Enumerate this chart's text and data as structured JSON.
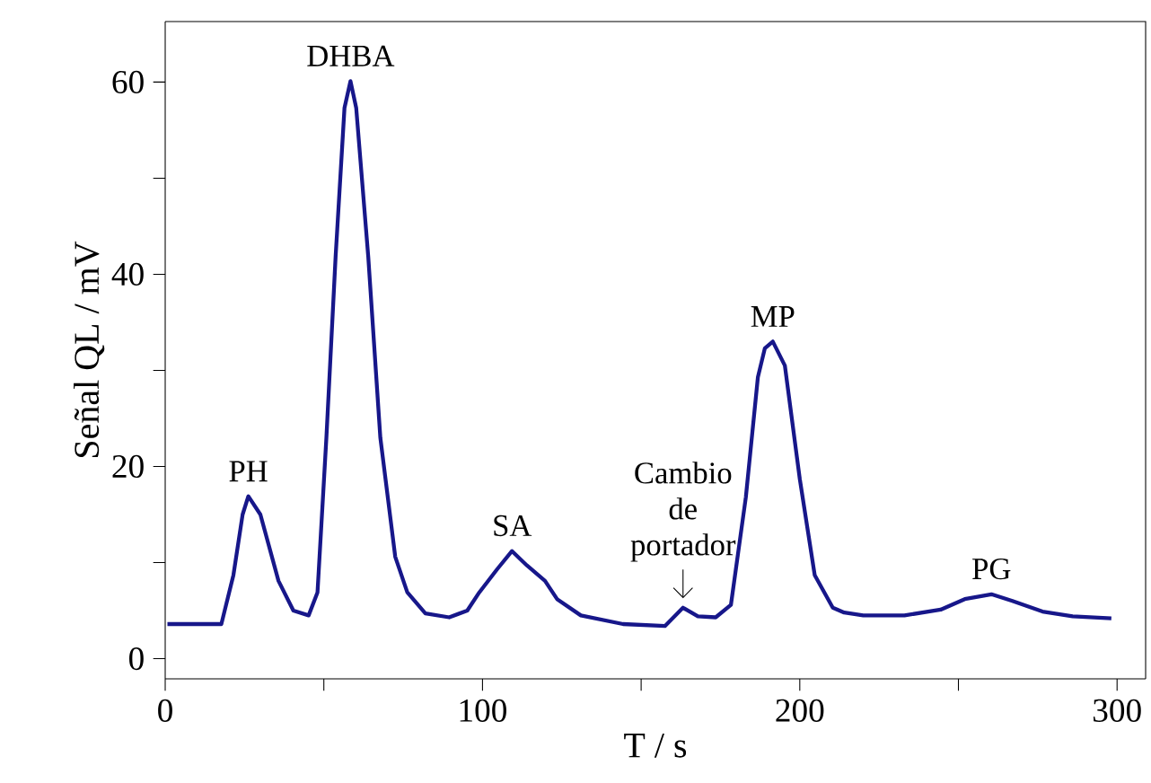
{
  "chart_data": {
    "type": "line",
    "xlabel": "T / s",
    "ylabel": "Señal QL / mV",
    "color": "#17178a",
    "x": [
      0.7,
      17.7,
      21.5,
      24.4,
      26.2,
      30,
      35.7,
      40.4,
      45.2,
      48,
      50.8,
      53.7,
      56.5,
      58.4,
      60.2,
      64,
      67.8,
      72.5,
      76.3,
      82,
      89.5,
      95.2,
      99,
      104.6,
      109.3,
      114,
      119.7,
      123.5,
      131,
      144.3,
      157.5,
      163.2,
      167.9,
      173.5,
      178.3,
      183,
      186.8,
      189,
      191.5,
      195.3,
      200,
      204.7,
      210.4,
      214,
      220,
      233,
      244.4,
      252,
      260.4,
      267,
      276.5,
      286,
      298.2
    ],
    "values": [
      3.6,
      3.6,
      8.7,
      15,
      16.9,
      15,
      8.1,
      5,
      4.5,
      6.9,
      23,
      41.8,
      57.3,
      60.1,
      57.3,
      41.8,
      23,
      10.6,
      6.9,
      4.7,
      4.3,
      5,
      6.9,
      9.3,
      11.2,
      9.7,
      8.1,
      6.2,
      4.5,
      3.6,
      3.4,
      5.3,
      4.4,
      4.3,
      5.6,
      16.8,
      29.3,
      32.3,
      33,
      30.5,
      18.7,
      8.7,
      5.3,
      4.8,
      4.5,
      4.5,
      5.1,
      6.2,
      6.7,
      6,
      4.9,
      4.4,
      4.2
    ],
    "xlim": [
      0,
      309
    ],
    "ylim": [
      -2.1,
      66.3
    ],
    "xticks": [
      0,
      {
        "value": 50,
        "label": null
      },
      100,
      {
        "value": 150,
        "label": null
      },
      200,
      {
        "value": 250,
        "label": null
      },
      300
    ],
    "yticks": [
      0,
      {
        "value": 10,
        "label": null
      },
      20,
      {
        "value": 30,
        "label": null
      },
      40,
      {
        "value": 50,
        "label": null
      },
      60
    ],
    "annotations": [
      {
        "text": "PH",
        "x": 26.2,
        "y": 16.9
      },
      {
        "text": "DHBA",
        "x": 58.4,
        "y": 60.1
      },
      {
        "text": "SA",
        "x": 109.3,
        "y": 11.2
      },
      {
        "text": "Cambio de portador",
        "x": 163.2,
        "y": 5.3
      },
      {
        "text": "MP",
        "x": 191.5,
        "y": 33
      },
      {
        "text": "PG",
        "x": 260.4,
        "y": 6.7
      }
    ]
  }
}
